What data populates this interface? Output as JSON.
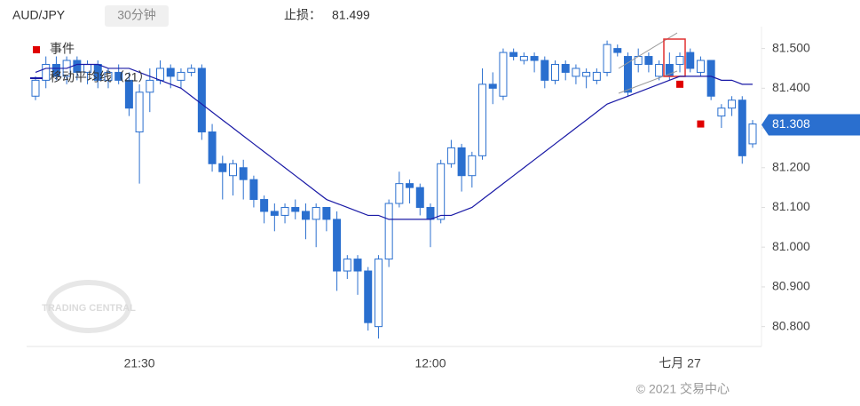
{
  "header": {
    "symbol": "AUD/JPY",
    "interval": "30分钟",
    "stop_label": "止损：",
    "stop_value": "81.499"
  },
  "watermark": "TRADING CENTRAL",
  "footer": "© 2021 交易中心",
  "chart_data": {
    "type": "candlestick",
    "categories": [
      null,
      null,
      null,
      null,
      null,
      null,
      null,
      null,
      null,
      null,
      "21:30",
      null,
      null,
      null,
      null,
      null,
      null,
      null,
      null,
      null,
      null,
      null,
      null,
      null,
      null,
      null,
      null,
      null,
      null,
      null,
      null,
      null,
      null,
      null,
      null,
      null,
      null,
      null,
      "12:00",
      null,
      null,
      null,
      null,
      null,
      null,
      null,
      null,
      null,
      null,
      null,
      null,
      null,
      null,
      null,
      null,
      null,
      null,
      null,
      null,
      null,
      null,
      null,
      "七月 27",
      null,
      null,
      null,
      null,
      null,
      null,
      null
    ],
    "open": [
      81.38,
      81.42,
      81.46,
      81.43,
      81.47,
      81.44,
      81.46,
      81.42,
      81.44,
      81.42,
      81.29,
      81.39,
      81.42,
      81.45,
      81.42,
      81.44,
      81.45,
      81.29,
      81.21,
      81.18,
      81.2,
      81.17,
      81.12,
      81.09,
      81.08,
      81.1,
      81.09,
      81.07,
      81.1,
      81.07,
      80.94,
      80.97,
      80.94,
      80.8,
      80.97,
      81.11,
      81.16,
      81.15,
      81.1,
      81.07,
      81.21,
      81.25,
      81.18,
      81.23,
      81.41,
      81.38,
      81.49,
      81.47,
      81.48,
      81.47,
      81.42,
      81.46,
      81.43,
      81.43,
      81.42,
      81.44,
      81.5,
      81.48,
      81.46,
      81.48,
      81.43,
      81.46,
      81.46,
      81.49,
      81.44,
      81.47,
      81.33,
      81.35,
      81.37,
      81.26
    ],
    "high": [
      81.43,
      81.48,
      81.48,
      81.48,
      81.48,
      81.47,
      81.47,
      81.45,
      81.46,
      81.44,
      81.41,
      81.45,
      81.47,
      81.46,
      81.45,
      81.46,
      81.46,
      81.31,
      81.23,
      81.22,
      81.22,
      81.18,
      81.13,
      81.11,
      81.11,
      81.12,
      81.11,
      81.11,
      81.1,
      81.09,
      80.98,
      80.98,
      80.95,
      80.98,
      81.12,
      81.19,
      81.17,
      81.16,
      81.11,
      81.22,
      81.27,
      81.26,
      81.24,
      81.45,
      81.44,
      81.5,
      81.5,
      81.49,
      81.49,
      81.48,
      81.47,
      81.47,
      81.46,
      81.45,
      81.45,
      81.52,
      81.51,
      81.49,
      81.5,
      81.49,
      81.47,
      81.49,
      81.49,
      81.5,
      81.48,
      81.47,
      81.36,
      81.38,
      81.38,
      81.32
    ],
    "low": [
      81.37,
      81.4,
      81.42,
      81.41,
      81.42,
      81.41,
      81.4,
      81.4,
      81.41,
      81.33,
      81.16,
      81.34,
      81.41,
      81.4,
      81.4,
      81.43,
      81.27,
      81.19,
      81.12,
      81.13,
      81.12,
      81.1,
      81.06,
      81.04,
      81.06,
      81.07,
      81.02,
      81.0,
      81.04,
      80.89,
      80.92,
      80.88,
      80.79,
      80.77,
      80.95,
      81.1,
      81.11,
      81.08,
      81.0,
      81.06,
      81.2,
      81.14,
      81.15,
      81.22,
      81.36,
      81.37,
      81.47,
      81.46,
      81.44,
      81.4,
      81.41,
      81.42,
      81.41,
      81.4,
      81.41,
      81.43,
      81.48,
      81.38,
      81.44,
      81.44,
      81.42,
      81.42,
      81.44,
      81.44,
      81.43,
      81.37,
      81.3,
      81.33,
      81.21,
      81.25
    ],
    "close": [
      81.42,
      81.46,
      81.43,
      81.47,
      81.44,
      81.46,
      81.42,
      81.44,
      81.42,
      81.35,
      81.39,
      81.42,
      81.45,
      81.43,
      81.44,
      81.45,
      81.29,
      81.21,
      81.19,
      81.21,
      81.17,
      81.12,
      81.09,
      81.08,
      81.1,
      81.09,
      81.07,
      81.1,
      81.07,
      80.94,
      80.97,
      80.94,
      80.81,
      80.97,
      81.11,
      81.16,
      81.15,
      81.1,
      81.07,
      81.21,
      81.25,
      81.18,
      81.23,
      81.41,
      81.4,
      81.49,
      81.48,
      81.48,
      81.47,
      81.42,
      81.46,
      81.44,
      81.45,
      81.44,
      81.44,
      81.51,
      81.49,
      81.39,
      81.48,
      81.46,
      81.46,
      81.43,
      81.48,
      81.45,
      81.47,
      81.38,
      81.35,
      81.37,
      81.23,
      81.31
    ],
    "up_color": "#ffffff",
    "down_color": "#2a6fcf",
    "candle_edge": "#2a6fcf",
    "series": [
      {
        "name": "事件",
        "color": "#e00000",
        "kind": "marker",
        "values": [
          null,
          null,
          null,
          null,
          null,
          null,
          null,
          null,
          null,
          null,
          null,
          null,
          null,
          null,
          null,
          null,
          null,
          null,
          null,
          null,
          null,
          null,
          null,
          null,
          null,
          null,
          null,
          null,
          null,
          null,
          null,
          null,
          null,
          null,
          null,
          null,
          null,
          null,
          null,
          null,
          null,
          null,
          null,
          null,
          null,
          null,
          null,
          null,
          null,
          null,
          null,
          null,
          null,
          null,
          null,
          null,
          null,
          null,
          null,
          null,
          null,
          null,
          81.41,
          null,
          81.31,
          null,
          null,
          null,
          null,
          null
        ]
      },
      {
        "name": "移动平均线（21）",
        "color": "#1a1aa6",
        "kind": "line",
        "values": [
          81.44,
          81.45,
          81.45,
          81.45,
          81.46,
          81.46,
          81.46,
          81.45,
          81.45,
          81.45,
          81.44,
          81.43,
          81.42,
          81.41,
          81.4,
          81.38,
          81.36,
          81.34,
          81.32,
          81.3,
          81.28,
          81.26,
          81.24,
          81.22,
          81.2,
          81.18,
          81.16,
          81.14,
          81.12,
          81.11,
          81.1,
          81.09,
          81.08,
          81.08,
          81.07,
          81.07,
          81.07,
          81.07,
          81.07,
          81.08,
          81.08,
          81.09,
          81.1,
          81.12,
          81.14,
          81.16,
          81.18,
          81.2,
          81.22,
          81.24,
          81.26,
          81.28,
          81.3,
          81.32,
          81.34,
          81.36,
          81.37,
          81.38,
          81.39,
          81.4,
          81.41,
          81.42,
          81.43,
          81.43,
          81.43,
          81.43,
          81.42,
          81.42,
          81.41,
          81.41
        ]
      }
    ],
    "last_price": {
      "value": 81.308,
      "label": "81.308",
      "color": "#2a6fcf"
    },
    "ylim": [
      80.75,
      81.555
    ],
    "yticks": [
      {
        "value": 80.8,
        "label": "80.800"
      },
      {
        "value": 80.9,
        "label": "80.900"
      },
      {
        "value": 81.0,
        "label": "81.000"
      },
      {
        "value": 81.1,
        "label": "81.100"
      },
      {
        "value": 81.2,
        "label": "81.200"
      },
      {
        "value": 81.3,
        "label": "81.300"
      },
      {
        "value": 81.4,
        "label": "81.400"
      },
      {
        "value": 81.5,
        "label": "81.500"
      }
    ]
  }
}
